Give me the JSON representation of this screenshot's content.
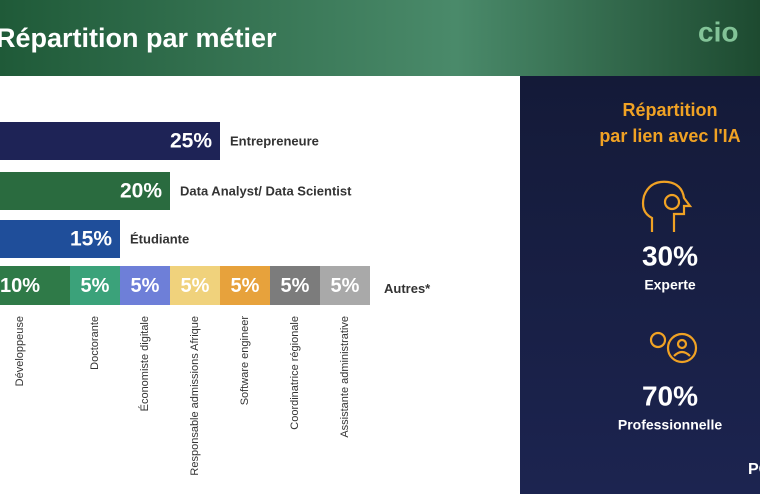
{
  "logo": "cio",
  "footer_logo": "PO",
  "chart_data": [
    {
      "type": "bar",
      "orientation": "horizontal",
      "title": "Répartition par métier",
      "categories": [
        "Entrepreneure",
        "Data Analyst/ Data Scientist",
        "Étudiante"
      ],
      "values": [
        25,
        20,
        15
      ],
      "value_labels": [
        "25%",
        "20%",
        "15%"
      ],
      "colors": [
        "#1e2356",
        "#2a6b3f",
        "#1f4e9a"
      ],
      "other": {
        "name": "Autres*",
        "categories": [
          "Développeuse",
          "Doctorante",
          "Économiste digitale",
          "Responsable admissions Afrique",
          "Software engineer",
          "Coordinatrice régionale",
          "Assistante administrative"
        ],
        "values": [
          10,
          5,
          5,
          5,
          5,
          5,
          5
        ],
        "value_labels": [
          "10%",
          "5%",
          "5%",
          "5%",
          "5%",
          "5%",
          "5%"
        ],
        "colors": [
          "#2f7a48",
          "#3ba27a",
          "#6e7fd8",
          "#f0d27c",
          "#e7a23c",
          "#7c7c7c",
          "#a9a9a9"
        ]
      }
    },
    {
      "type": "stat",
      "title": "Répartition par lien avec l'IA",
      "categories": [
        "Experte",
        "Professionnelle"
      ],
      "values": [
        30,
        70
      ],
      "value_labels": [
        "30%",
        "70%"
      ],
      "color": "#f0a224"
    }
  ]
}
